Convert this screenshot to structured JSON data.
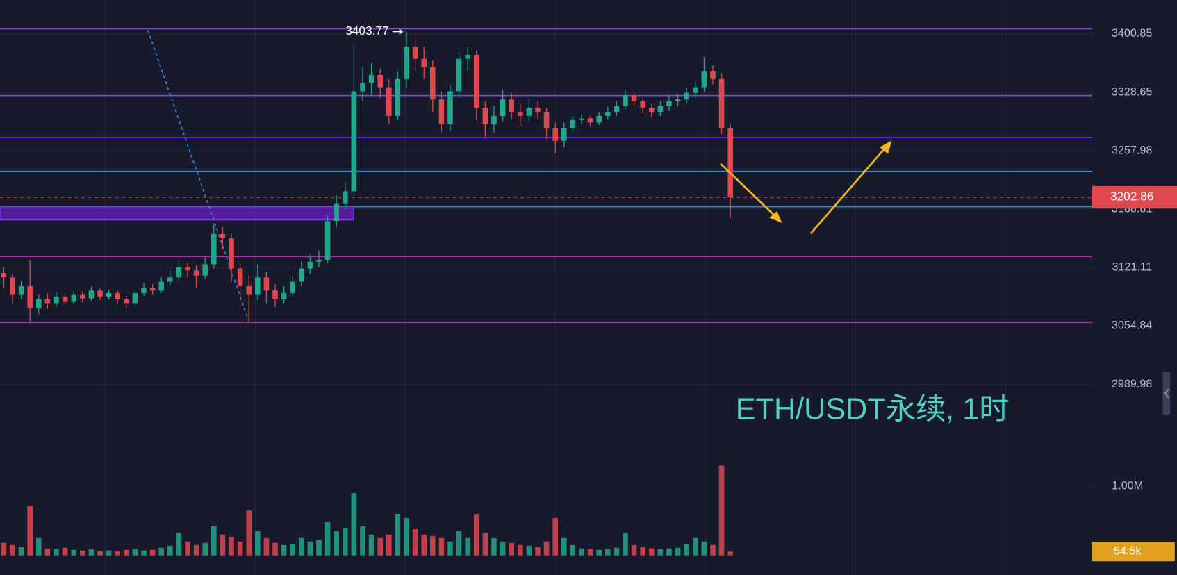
{
  "chart_data": {
    "type": "candlestick",
    "title": "ETH/USDT永续, 1时",
    "title_color": "#4fd1c5",
    "log_scale": true,
    "grid": true,
    "up_color": "#22a68a",
    "down_color": "#e0484f",
    "open": [
      3115,
      3110,
      3090,
      3100,
      3075,
      3085,
      3080,
      3088,
      3082,
      3090,
      3086,
      3095,
      3088,
      3092,
      3085,
      3080,
      3092,
      3098,
      3095,
      3105,
      3110,
      3122,
      3118,
      3112,
      3125,
      3160,
      3155,
      3120,
      3100,
      3090,
      3110,
      3095,
      3085,
      3092,
      3105,
      3120,
      3128,
      3130,
      3175,
      3195,
      3210,
      3330,
      3340,
      3350,
      3335,
      3300,
      3345,
      3385,
      3370,
      3360,
      3320,
      3290,
      3330,
      3370,
      3375,
      3310,
      3290,
      3300,
      3320,
      3305,
      3300,
      3310,
      3305,
      3285,
      3270,
      3285,
      3295,
      3297,
      3292,
      3300,
      3305,
      3312,
      3325,
      3318,
      3310,
      3305,
      3312,
      3318,
      3320,
      3328,
      3335,
      3355,
      3345,
      3285
    ],
    "high": [
      3122,
      3114,
      3106,
      3130,
      3090,
      3092,
      3093,
      3091,
      3095,
      3094,
      3099,
      3098,
      3096,
      3095,
      3089,
      3096,
      3103,
      3102,
      3110,
      3118,
      3130,
      3127,
      3124,
      3133,
      3172,
      3168,
      3160,
      3126,
      3112,
      3125,
      3116,
      3102,
      3100,
      3112,
      3128,
      3136,
      3140,
      3182,
      3205,
      3222,
      3388,
      3360,
      3365,
      3358,
      3345,
      3355,
      3403.77,
      3398,
      3385,
      3368,
      3330,
      3338,
      3378,
      3385,
      3380,
      3318,
      3312,
      3332,
      3328,
      3315,
      3320,
      3318,
      3310,
      3292,
      3292,
      3300,
      3302,
      3300,
      3305,
      3311,
      3318,
      3332,
      3330,
      3322,
      3315,
      3318,
      3324,
      3326,
      3334,
      3342,
      3372,
      3362,
      3352,
      3290
    ],
    "low": [
      3098,
      3080,
      3085,
      3058,
      3068,
      3074,
      3076,
      3077,
      3079,
      3081,
      3083,
      3084,
      3085,
      3080,
      3075,
      3078,
      3089,
      3090,
      3092,
      3101,
      3106,
      3110,
      3098,
      3108,
      3120,
      3142,
      3105,
      3082,
      3058,
      3084,
      3080,
      3076,
      3080,
      3088,
      3100,
      3114,
      3122,
      3126,
      3168,
      3188,
      3205,
      3318,
      3325,
      3322,
      3290,
      3295,
      3335,
      3355,
      3345,
      3305,
      3280,
      3282,
      3322,
      3355,
      3295,
      3275,
      3280,
      3294,
      3296,
      3288,
      3294,
      3296,
      3272,
      3255,
      3262,
      3280,
      3290,
      3287,
      3289,
      3296,
      3300,
      3308,
      3312,
      3303,
      3298,
      3300,
      3306,
      3312,
      3315,
      3322,
      3330,
      3338,
      3278,
      3178
    ],
    "close": [
      3110,
      3090,
      3100,
      3075,
      3085,
      3080,
      3088,
      3082,
      3090,
      3086,
      3095,
      3088,
      3092,
      3085,
      3080,
      3092,
      3098,
      3095,
      3105,
      3110,
      3122,
      3118,
      3112,
      3125,
      3160,
      3155,
      3120,
      3100,
      3090,
      3110,
      3095,
      3085,
      3092,
      3105,
      3120,
      3128,
      3130,
      3175,
      3195,
      3210,
      3330,
      3340,
      3350,
      3335,
      3300,
      3345,
      3385,
      3370,
      3360,
      3320,
      3290,
      3330,
      3370,
      3375,
      3310,
      3290,
      3300,
      3320,
      3305,
      3300,
      3310,
      3305,
      3285,
      3270,
      3285,
      3295,
      3297,
      3292,
      3300,
      3305,
      3312,
      3325,
      3318,
      3310,
      3305,
      3312,
      3318,
      3320,
      3328,
      3335,
      3355,
      3345,
      3285,
      3202.86
    ],
    "volume": [
      180000,
      150000,
      120000,
      720000,
      250000,
      100000,
      90000,
      110000,
      80000,
      70000,
      90000,
      60000,
      70000,
      60000,
      80000,
      90000,
      70000,
      80000,
      110000,
      140000,
      330000,
      200000,
      150000,
      180000,
      420000,
      300000,
      260000,
      200000,
      650000,
      350000,
      250000,
      180000,
      150000,
      160000,
      250000,
      200000,
      220000,
      480000,
      350000,
      400000,
      900000,
      420000,
      300000,
      250000,
      300000,
      600000,
      540000,
      380000,
      300000,
      280000,
      250000,
      200000,
      350000,
      250000,
      600000,
      320000,
      250000,
      200000,
      180000,
      150000,
      140000,
      120000,
      200000,
      540000,
      250000,
      150000,
      100000,
      90000,
      80000,
      90000,
      110000,
      330000,
      150000,
      120000,
      100000,
      90000,
      100000,
      110000,
      160000,
      250000,
      200000,
      150000,
      1300000,
      54500
    ],
    "ylim": [
      2926.5,
      3443.4
    ],
    "yticks": [
      3400.85,
      3328.65,
      3257.98,
      3188.81,
      3121.11,
      3054.84,
      2989.98
    ],
    "current_price": 3202.86,
    "current_price_color": "#e0484f",
    "high_marker": 3403.77,
    "levels": [
      {
        "value": 3407.4,
        "color": "#8a3ffc"
      },
      {
        "value": 3324.8,
        "color": "#8a3ffc"
      },
      {
        "value": 3273.8,
        "color": "#8a3ffc"
      },
      {
        "value": 3233.5,
        "color": "#3d86e8"
      },
      {
        "value": 3191.8,
        "color": "#3d86e8"
      },
      {
        "value": 3134.2,
        "color": "#d645d0"
      },
      {
        "value": 3059.1,
        "color": "#d645d0"
      }
    ],
    "volume_ylim": [
      0,
      1630000
    ],
    "volume_yticks": [
      {
        "value": 1000000,
        "label": "1.00M"
      }
    ],
    "current_volume": {
      "value": 54500,
      "label": "54.5k"
    },
    "current_volume_color": "#e0a020"
  }
}
